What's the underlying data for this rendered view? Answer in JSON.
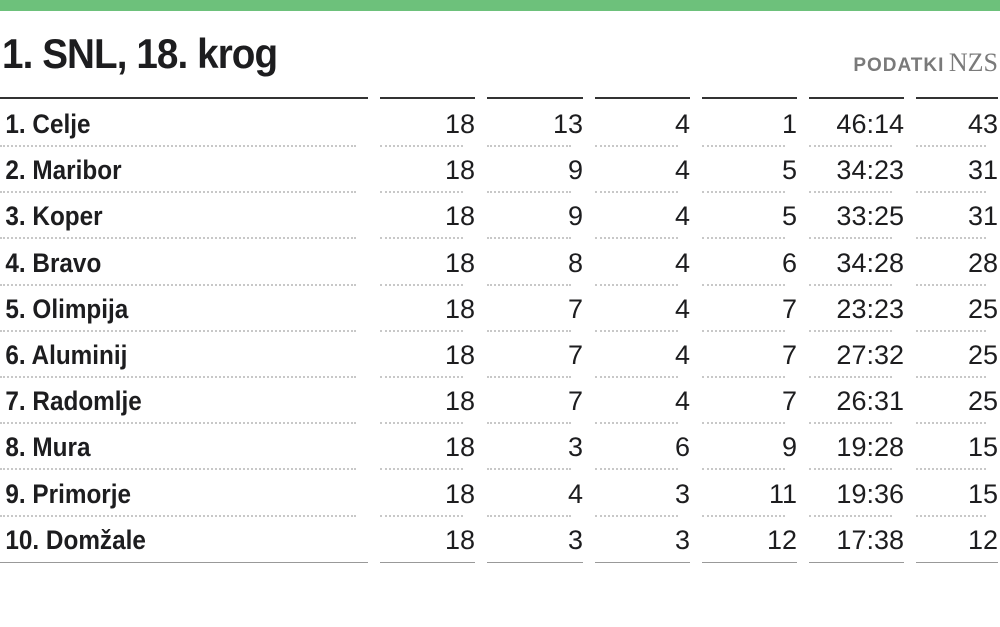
{
  "header": {
    "title": "1. SNL, 18. krog",
    "source_label": "PODATKI",
    "source_name": "NZS",
    "accent_color": "#6dc17b"
  },
  "table": {
    "rows": [
      {
        "team": "1. Celje",
        "played": "18",
        "won": "13",
        "drawn": "4",
        "lost": "1",
        "goals": "46:14",
        "points": "43"
      },
      {
        "team": "2. Maribor",
        "played": "18",
        "won": "9",
        "drawn": "4",
        "lost": "5",
        "goals": "34:23",
        "points": "31"
      },
      {
        "team": "3. Koper",
        "played": "18",
        "won": "9",
        "drawn": "4",
        "lost": "5",
        "goals": "33:25",
        "points": "31"
      },
      {
        "team": "4. Bravo",
        "played": "18",
        "won": "8",
        "drawn": "4",
        "lost": "6",
        "goals": "34:28",
        "points": "28"
      },
      {
        "team": "5. Olimpija",
        "played": "18",
        "won": "7",
        "drawn": "4",
        "lost": "7",
        "goals": "23:23",
        "points": "25"
      },
      {
        "team": "6. Aluminij",
        "played": "18",
        "won": "7",
        "drawn": "4",
        "lost": "7",
        "goals": "27:32",
        "points": "25"
      },
      {
        "team": "7. Radomlje",
        "played": "18",
        "won": "7",
        "drawn": "4",
        "lost": "7",
        "goals": "26:31",
        "points": "25"
      },
      {
        "team": "8. Mura",
        "played": "18",
        "won": "3",
        "drawn": "6",
        "lost": "9",
        "goals": "19:28",
        "points": "15"
      },
      {
        "team": "9. Primorje",
        "played": "18",
        "won": "4",
        "drawn": "3",
        "lost": "11",
        "goals": "19:36",
        "points": "15"
      },
      {
        "team": "10. Domžale",
        "played": "18",
        "won": "3",
        "drawn": "3",
        "lost": "12",
        "goals": "17:38",
        "points": "12"
      }
    ]
  }
}
